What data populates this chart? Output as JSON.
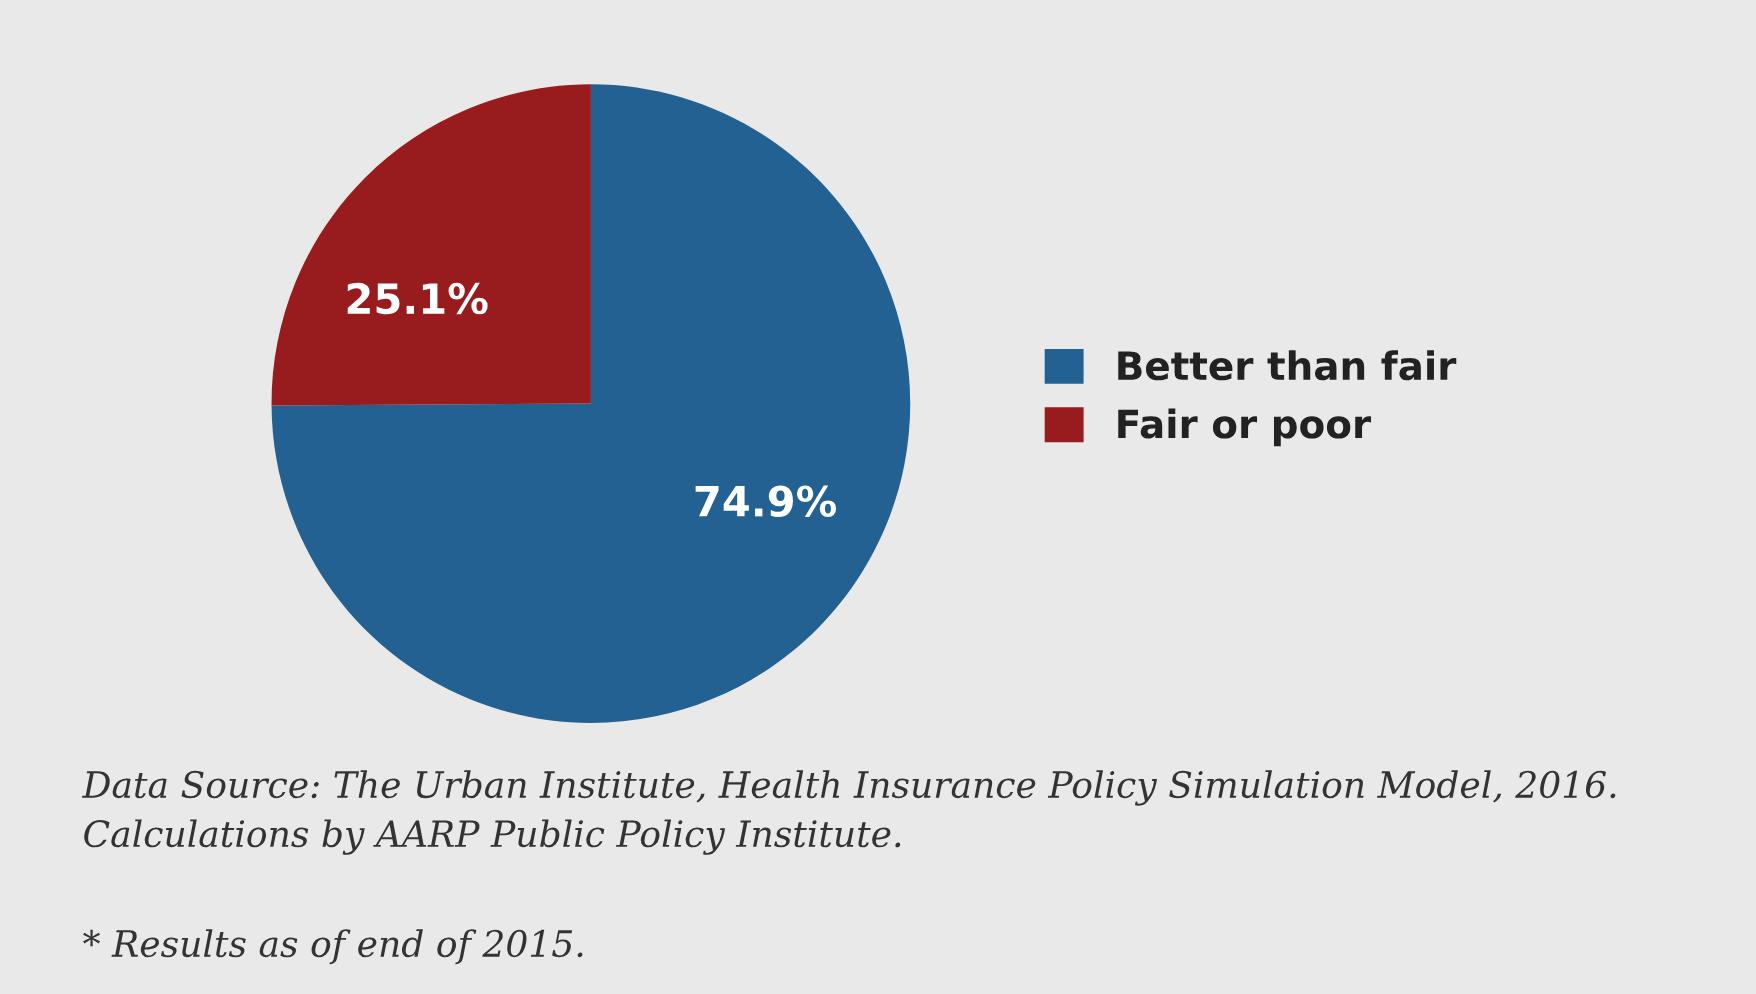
{
  "chart_data": {
    "type": "pie",
    "categories": [
      "Better than fair",
      "Fair or poor"
    ],
    "values": [
      74.9,
      25.1
    ],
    "colors": [
      "#236192",
      "#981b1e"
    ],
    "value_labels": [
      "74.9%",
      "25.1%"
    ],
    "legend": "right",
    "annotations": [
      "Data Source: The Urban Institute, Health Insurance Policy Simulation Model, 2016. Calculations by AARP Public Policy Institute.",
      "* Results as of end of 2015."
    ]
  }
}
